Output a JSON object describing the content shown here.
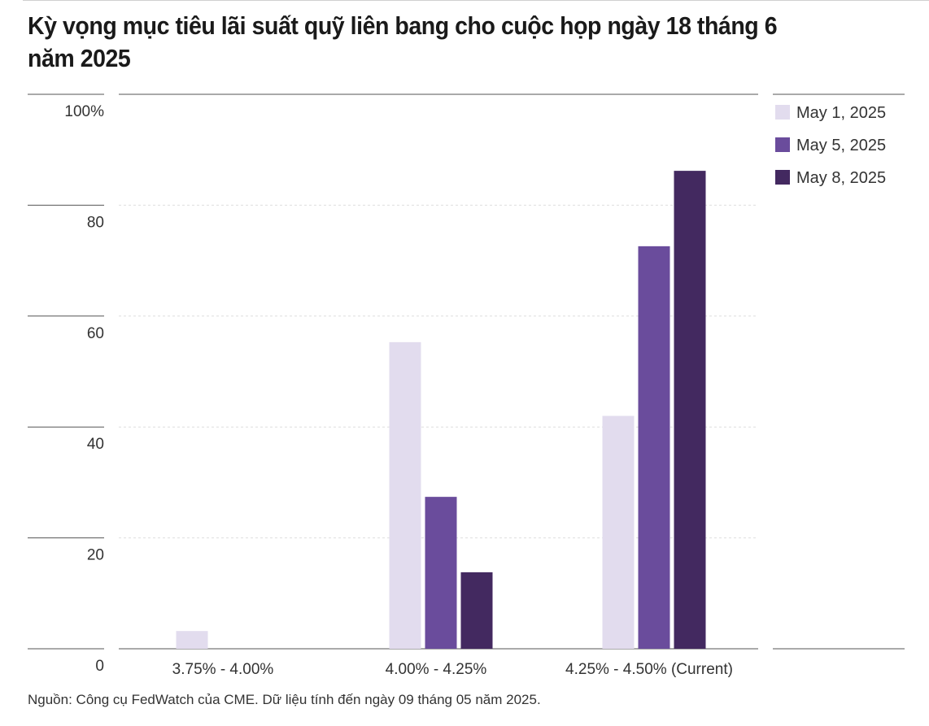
{
  "title": "Kỳ vọng mục tiêu lãi suất quỹ liên bang cho cuộc họp ngày 18 tháng 6 năm 2025",
  "source": "Nguồn: Công cụ FedWatch của CME. Dữ liệu tính đến ngày 09 tháng 05 năm 2025.",
  "chart_data": {
    "type": "bar",
    "title": "Kỳ vọng mục tiêu lãi suất quỹ liên bang cho cuộc họp ngày 18 tháng 6 năm 2025",
    "xlabel": "",
    "ylabel": "",
    "ylim": [
      0,
      100
    ],
    "yticks": [
      0,
      20,
      40,
      60,
      80,
      100
    ],
    "ytick_labels": [
      "0",
      "20",
      "40",
      "60",
      "80",
      "100%"
    ],
    "grid": true,
    "legend_position": "top-right",
    "categories": [
      "3.75% - 4.00%",
      "4.00% - 4.25%",
      "4.25% - 4.50% (Current)"
    ],
    "series": [
      {
        "name": "May 1, 2025",
        "color": "#e2dcee",
        "values": [
          3.2,
          55.3,
          42.0
        ]
      },
      {
        "name": "May 5, 2025",
        "color": "#6a4c9c",
        "values": [
          0,
          27.4,
          72.6
        ]
      },
      {
        "name": "May 8, 2025",
        "color": "#432960",
        "values": [
          0,
          13.8,
          86.2
        ]
      }
    ]
  }
}
